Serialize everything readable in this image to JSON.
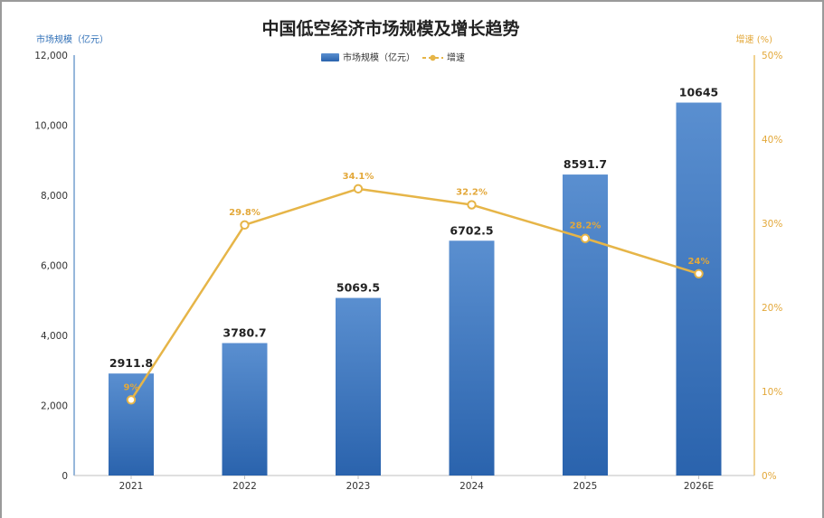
{
  "chart_data": {
    "type": "bar",
    "title": "中国低空经济市场规模及增长趋势",
    "categories": [
      "2021",
      "2022",
      "2023",
      "2024",
      "2025",
      "2026E"
    ],
    "series": [
      {
        "name": "市场规模（亿元）",
        "type": "bar",
        "axis": "left",
        "values": [
          2911.8,
          3780.7,
          5069.5,
          6702.5,
          8591.7,
          10645
        ],
        "labels": [
          "2911.8",
          "3780.7",
          "5069.5",
          "6702.5",
          "8591.7",
          "10645"
        ]
      },
      {
        "name": "增速",
        "type": "line",
        "axis": "right",
        "values": [
          9,
          29.8,
          34.1,
          32.2,
          28.2,
          24
        ],
        "labels": [
          "9%",
          "29.8%",
          "34.1%",
          "32.2%",
          "28.2%",
          "24%"
        ]
      }
    ],
    "ylabel_left": "市场规模（亿元）",
    "ylabel_right": "增速 (%)",
    "ylim_left": [
      0,
      12000
    ],
    "ylim_right": [
      0,
      50
    ],
    "yticks_left": [
      "0",
      "2,000",
      "4,000",
      "6,000",
      "8,000",
      "10,000",
      "12,000"
    ],
    "yticks_right": [
      "0%",
      "10%",
      "20%",
      "30%",
      "40%",
      "50%"
    ],
    "legend_position": "top-center",
    "grid": false,
    "colors": {
      "bar_top": "#5a8fd0",
      "bar_bottom": "#2a63ad",
      "line": "#e6b548",
      "label_line": "#e3a83a",
      "axis_left": "#2f6fb7"
    }
  }
}
